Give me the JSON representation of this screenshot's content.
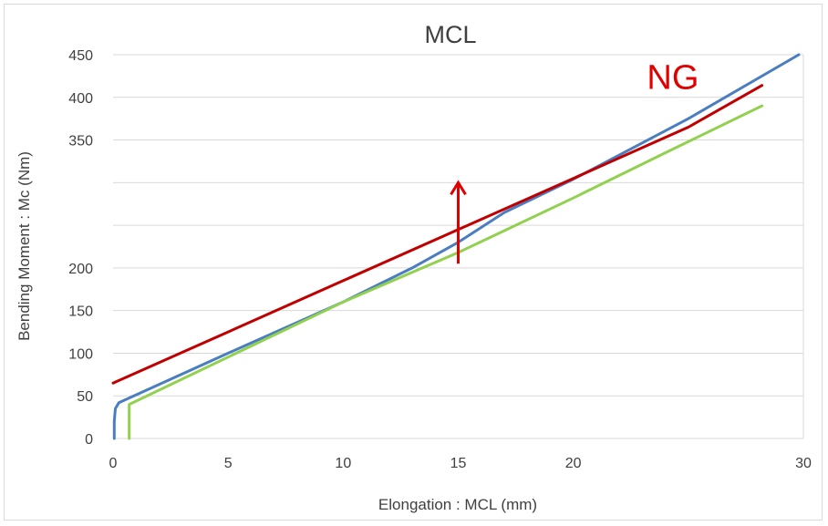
{
  "chart_data": {
    "type": "line",
    "title": "MCL",
    "xlabel": "Elongation : MCL (mm)",
    "ylabel": "Bending Moment : Mc (Nm)",
    "xlim": [
      0,
      30
    ],
    "ylim": [
      0,
      450
    ],
    "x_ticks": [
      0,
      5,
      10,
      15,
      20,
      30
    ],
    "y_ticks": [
      0,
      50,
      100,
      150,
      200,
      350,
      400,
      450
    ],
    "y_gridlines": [
      0,
      50,
      100,
      150,
      200,
      250,
      300,
      350,
      400,
      450
    ],
    "grid": true,
    "legend": "none",
    "series": [
      {
        "color": "#4a7ec0",
        "points": [
          [
            0.05,
            0
          ],
          [
            0.05,
            20
          ],
          [
            0.1,
            35
          ],
          [
            0.25,
            42
          ],
          [
            5,
            100
          ],
          [
            10,
            160
          ],
          [
            13,
            200
          ],
          [
            15,
            230
          ],
          [
            17,
            265
          ],
          [
            20,
            304
          ],
          [
            25,
            375
          ],
          [
            29.8,
            450
          ]
        ]
      },
      {
        "color": "#92d050",
        "points": [
          [
            0.7,
            0
          ],
          [
            0.7,
            40
          ],
          [
            10,
            160
          ],
          [
            15,
            218
          ],
          [
            20,
            282
          ],
          [
            24,
            335
          ],
          [
            28.2,
            390
          ]
        ]
      },
      {
        "color": "#c00000",
        "points": [
          [
            0,
            65
          ],
          [
            5,
            125
          ],
          [
            10,
            185
          ],
          [
            15,
            245
          ],
          [
            20,
            305
          ],
          [
            25,
            365
          ],
          [
            28.2,
            414
          ]
        ]
      }
    ],
    "annotations": [
      {
        "text": "NG",
        "x": 23.2,
        "y": 410,
        "color": "#e00000"
      },
      {
        "arrow": "up",
        "x": 15,
        "y_from": 205,
        "y_to": 300,
        "color": "#e00000"
      }
    ]
  }
}
